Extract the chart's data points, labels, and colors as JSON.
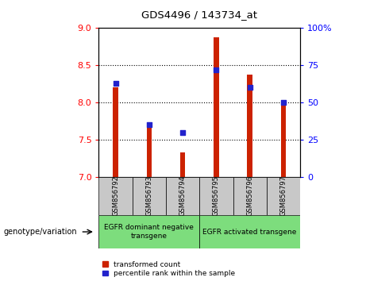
{
  "title": "GDS4496 / 143734_at",
  "samples": [
    "GSM856792",
    "GSM856793",
    "GSM856794",
    "GSM856795",
    "GSM856796",
    "GSM856797"
  ],
  "red_values": [
    8.2,
    7.72,
    7.33,
    8.88,
    8.38,
    8.0
  ],
  "blue_percentiles": [
    63,
    35,
    30,
    72,
    60,
    50
  ],
  "y_min": 7.0,
  "y_max": 9.0,
  "y_ticks": [
    7.0,
    7.5,
    8.0,
    8.5,
    9.0
  ],
  "y2_ticks": [
    0,
    25,
    50,
    75,
    100
  ],
  "y2_tick_labels": [
    "0",
    "25",
    "50",
    "75",
    "100%"
  ],
  "bar_color": "#cc2200",
  "square_color": "#2222cc",
  "group1_label": "EGFR dominant negative\ntransgene",
  "group2_label": "EGFR activated transgene",
  "group1_indices": [
    0,
    1,
    2
  ],
  "group2_indices": [
    3,
    4,
    5
  ],
  "group_bg_color": "#7ddd7d",
  "label_bg_color": "#c8c8c8",
  "legend_red_label": "transformed count",
  "legend_blue_label": "percentile rank within the sample",
  "genotype_label": "genotype/variation",
  "bar_width": 0.15
}
